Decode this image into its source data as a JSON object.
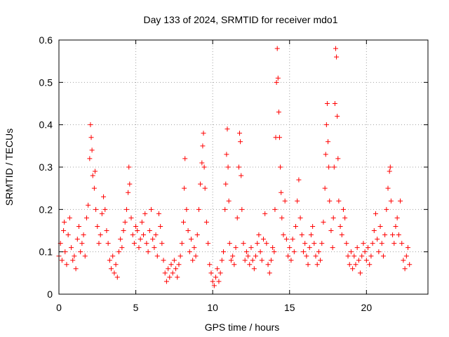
{
  "chart_data": {
    "type": "scatter",
    "title": "Day 133 of 2024, SRMTID for receiver mdo1",
    "xlabel": "GPS time / hours",
    "ylabel": "SRMTID / TECUs",
    "xlim": [
      0,
      24
    ],
    "ylim": [
      0,
      0.6
    ],
    "x_ticks": [
      0,
      5,
      10,
      15,
      20
    ],
    "x_tick_labels": [
      "0",
      "5",
      "10",
      "15",
      "20"
    ],
    "y_ticks": [
      0,
      0.1,
      0.2,
      0.3,
      0.4,
      0.5,
      0.6
    ],
    "y_tick_labels": [
      "0",
      "0.1",
      "0.2",
      "0.3",
      "0.4",
      "0.5",
      "0.6"
    ],
    "grid": true,
    "marker": "+",
    "marker_color": "#ff0000",
    "series": [
      {
        "name": "SRMTID",
        "points": [
          [
            0.0,
            0.09
          ],
          [
            0.1,
            0.12
          ],
          [
            0.2,
            0.08
          ],
          [
            0.3,
            0.15
          ],
          [
            0.35,
            0.17
          ],
          [
            0.4,
            0.1
          ],
          [
            0.5,
            0.07
          ],
          [
            0.6,
            0.14
          ],
          [
            0.7,
            0.18
          ],
          [
            0.8,
            0.11
          ],
          [
            0.9,
            0.08
          ],
          [
            1.0,
            0.09
          ],
          [
            1.1,
            0.06
          ],
          [
            1.2,
            0.13
          ],
          [
            1.3,
            0.16
          ],
          [
            1.4,
            0.1
          ],
          [
            1.5,
            0.12
          ],
          [
            1.6,
            0.14
          ],
          [
            1.7,
            0.09
          ],
          [
            1.8,
            0.18
          ],
          [
            1.9,
            0.21
          ],
          [
            2.0,
            0.32
          ],
          [
            2.05,
            0.4
          ],
          [
            2.1,
            0.37
          ],
          [
            2.15,
            0.34
          ],
          [
            2.2,
            0.28
          ],
          [
            2.3,
            0.25
          ],
          [
            2.35,
            0.29
          ],
          [
            2.4,
            0.2
          ],
          [
            2.5,
            0.16
          ],
          [
            2.6,
            0.12
          ],
          [
            2.7,
            0.14
          ],
          [
            2.8,
            0.19
          ],
          [
            2.9,
            0.23
          ],
          [
            3.0,
            0.2
          ],
          [
            3.1,
            0.15
          ],
          [
            3.2,
            0.12
          ],
          [
            3.3,
            0.08
          ],
          [
            3.4,
            0.06
          ],
          [
            3.5,
            0.09
          ],
          [
            3.6,
            0.05
          ],
          [
            3.7,
            0.07
          ],
          [
            3.8,
            0.04
          ],
          [
            3.9,
            0.1
          ],
          [
            4.0,
            0.13
          ],
          [
            4.1,
            0.11
          ],
          [
            4.2,
            0.15
          ],
          [
            4.3,
            0.17
          ],
          [
            4.4,
            0.2
          ],
          [
            4.5,
            0.24
          ],
          [
            4.55,
            0.3
          ],
          [
            4.6,
            0.26
          ],
          [
            4.7,
            0.18
          ],
          [
            4.8,
            0.14
          ],
          [
            4.9,
            0.12
          ],
          [
            5.0,
            0.16
          ],
          [
            5.1,
            0.15
          ],
          [
            5.2,
            0.11
          ],
          [
            5.3,
            0.13
          ],
          [
            5.4,
            0.17
          ],
          [
            5.5,
            0.14
          ],
          [
            5.6,
            0.19
          ],
          [
            5.7,
            0.12
          ],
          [
            5.8,
            0.1
          ],
          [
            5.9,
            0.15
          ],
          [
            6.0,
            0.2
          ],
          [
            6.1,
            0.13
          ],
          [
            6.2,
            0.11
          ],
          [
            6.3,
            0.14
          ],
          [
            6.4,
            0.09
          ],
          [
            6.5,
            0.19
          ],
          [
            6.6,
            0.16
          ],
          [
            6.7,
            0.12
          ],
          [
            6.8,
            0.08
          ],
          [
            6.9,
            0.05
          ],
          [
            7.0,
            0.03
          ],
          [
            7.1,
            0.06
          ],
          [
            7.2,
            0.04
          ],
          [
            7.3,
            0.07
          ],
          [
            7.4,
            0.05
          ],
          [
            7.5,
            0.08
          ],
          [
            7.6,
            0.06
          ],
          [
            7.7,
            0.04
          ],
          [
            7.8,
            0.07
          ],
          [
            7.9,
            0.09
          ],
          [
            8.0,
            0.12
          ],
          [
            8.1,
            0.17
          ],
          [
            8.15,
            0.25
          ],
          [
            8.2,
            0.32
          ],
          [
            8.3,
            0.2
          ],
          [
            8.4,
            0.15
          ],
          [
            8.5,
            0.1
          ],
          [
            8.6,
            0.13
          ],
          [
            8.7,
            0.08
          ],
          [
            8.8,
            0.11
          ],
          [
            8.9,
            0.09
          ],
          [
            9.0,
            0.14
          ],
          [
            9.1,
            0.2
          ],
          [
            9.2,
            0.26
          ],
          [
            9.3,
            0.31
          ],
          [
            9.35,
            0.35
          ],
          [
            9.4,
            0.38
          ],
          [
            9.45,
            0.3
          ],
          [
            9.5,
            0.25
          ],
          [
            9.6,
            0.17
          ],
          [
            9.7,
            0.12
          ],
          [
            9.8,
            0.07
          ],
          [
            9.9,
            0.05
          ],
          [
            10.0,
            0.03
          ],
          [
            10.1,
            0.02
          ],
          [
            10.2,
            0.04
          ],
          [
            10.3,
            0.06
          ],
          [
            10.4,
            0.03
          ],
          [
            10.5,
            0.05
          ],
          [
            10.6,
            0.08
          ],
          [
            10.7,
            0.1
          ],
          [
            10.8,
            0.2
          ],
          [
            10.85,
            0.26
          ],
          [
            10.9,
            0.33
          ],
          [
            10.95,
            0.39
          ],
          [
            11.0,
            0.3
          ],
          [
            11.05,
            0.22
          ],
          [
            11.1,
            0.12
          ],
          [
            11.2,
            0.08
          ],
          [
            11.3,
            0.09
          ],
          [
            11.4,
            0.07
          ],
          [
            11.5,
            0.11
          ],
          [
            11.6,
            0.18
          ],
          [
            11.7,
            0.3
          ],
          [
            11.75,
            0.38
          ],
          [
            11.8,
            0.36
          ],
          [
            11.85,
            0.28
          ],
          [
            11.9,
            0.2
          ],
          [
            12.0,
            0.12
          ],
          [
            12.1,
            0.08
          ],
          [
            12.2,
            0.1
          ],
          [
            12.3,
            0.09
          ],
          [
            12.4,
            0.07
          ],
          [
            12.5,
            0.11
          ],
          [
            12.6,
            0.08
          ],
          [
            12.7,
            0.06
          ],
          [
            12.8,
            0.09
          ],
          [
            12.9,
            0.12
          ],
          [
            13.0,
            0.14
          ],
          [
            13.1,
            0.1
          ],
          [
            13.2,
            0.08
          ],
          [
            13.3,
            0.13
          ],
          [
            13.4,
            0.19
          ],
          [
            13.5,
            0.12
          ],
          [
            13.6,
            0.07
          ],
          [
            13.7,
            0.05
          ],
          [
            13.8,
            0.08
          ],
          [
            13.9,
            0.11
          ],
          [
            14.0,
            0.1
          ],
          [
            14.05,
            0.2
          ],
          [
            14.1,
            0.37
          ],
          [
            14.15,
            0.5
          ],
          [
            14.2,
            0.58
          ],
          [
            14.25,
            0.51
          ],
          [
            14.3,
            0.43
          ],
          [
            14.35,
            0.37
          ],
          [
            14.4,
            0.3
          ],
          [
            14.45,
            0.24
          ],
          [
            14.5,
            0.18
          ],
          [
            14.6,
            0.14
          ],
          [
            14.7,
            0.22
          ],
          [
            14.8,
            0.13
          ],
          [
            14.9,
            0.09
          ],
          [
            15.0,
            0.11
          ],
          [
            15.1,
            0.08
          ],
          [
            15.2,
            0.13
          ],
          [
            15.3,
            0.1
          ],
          [
            15.4,
            0.16
          ],
          [
            15.5,
            0.22
          ],
          [
            15.6,
            0.27
          ],
          [
            15.7,
            0.18
          ],
          [
            15.8,
            0.14
          ],
          [
            15.9,
            0.1
          ],
          [
            16.0,
            0.12
          ],
          [
            16.1,
            0.09
          ],
          [
            16.2,
            0.07
          ],
          [
            16.3,
            0.11
          ],
          [
            16.4,
            0.14
          ],
          [
            16.5,
            0.16
          ],
          [
            16.6,
            0.12
          ],
          [
            16.7,
            0.09
          ],
          [
            16.8,
            0.07
          ],
          [
            16.9,
            0.1
          ],
          [
            17.0,
            0.08
          ],
          [
            17.1,
            0.12
          ],
          [
            17.2,
            0.17
          ],
          [
            17.3,
            0.25
          ],
          [
            17.35,
            0.33
          ],
          [
            17.4,
            0.4
          ],
          [
            17.45,
            0.45
          ],
          [
            17.5,
            0.36
          ],
          [
            17.55,
            0.3
          ],
          [
            17.6,
            0.22
          ],
          [
            17.7,
            0.15
          ],
          [
            17.8,
            0.11
          ],
          [
            17.85,
            0.18
          ],
          [
            17.9,
            0.3
          ],
          [
            17.95,
            0.45
          ],
          [
            18.0,
            0.58
          ],
          [
            18.05,
            0.56
          ],
          [
            18.1,
            0.42
          ],
          [
            18.15,
            0.32
          ],
          [
            18.2,
            0.22
          ],
          [
            18.3,
            0.16
          ],
          [
            18.4,
            0.14
          ],
          [
            18.5,
            0.2
          ],
          [
            18.6,
            0.18
          ],
          [
            18.7,
            0.12
          ],
          [
            18.8,
            0.09
          ],
          [
            18.9,
            0.07
          ],
          [
            19.0,
            0.1
          ],
          [
            19.1,
            0.06
          ],
          [
            19.2,
            0.09
          ],
          [
            19.3,
            0.07
          ],
          [
            19.4,
            0.11
          ],
          [
            19.5,
            0.08
          ],
          [
            19.6,
            0.05
          ],
          [
            19.7,
            0.09
          ],
          [
            19.8,
            0.12
          ],
          [
            19.9,
            0.1
          ],
          [
            20.0,
            0.08
          ],
          [
            20.1,
            0.11
          ],
          [
            20.2,
            0.07
          ],
          [
            20.3,
            0.09
          ],
          [
            20.4,
            0.12
          ],
          [
            20.5,
            0.15
          ],
          [
            20.6,
            0.19
          ],
          [
            20.7,
            0.13
          ],
          [
            20.8,
            0.1
          ],
          [
            20.9,
            0.16
          ],
          [
            21.0,
            0.12
          ],
          [
            21.1,
            0.09
          ],
          [
            21.2,
            0.14
          ],
          [
            21.3,
            0.2
          ],
          [
            21.4,
            0.25
          ],
          [
            21.5,
            0.29
          ],
          [
            21.55,
            0.3
          ],
          [
            21.6,
            0.22
          ],
          [
            21.7,
            0.14
          ],
          [
            21.8,
            0.12
          ],
          [
            21.9,
            0.16
          ],
          [
            22.0,
            0.18
          ],
          [
            22.1,
            0.14
          ],
          [
            22.2,
            0.22
          ],
          [
            22.3,
            0.12
          ],
          [
            22.4,
            0.08
          ],
          [
            22.5,
            0.06
          ],
          [
            22.6,
            0.09
          ],
          [
            22.7,
            0.11
          ],
          [
            22.8,
            0.07
          ]
        ]
      }
    ]
  }
}
